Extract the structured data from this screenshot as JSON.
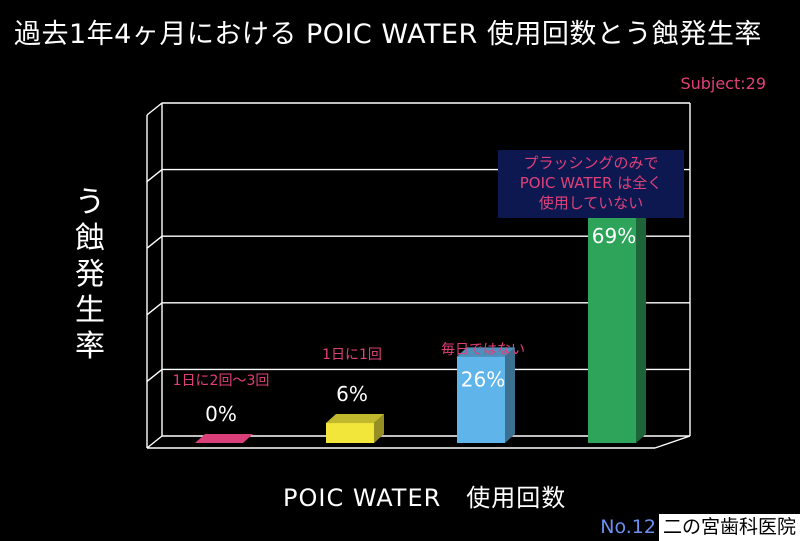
{
  "title": "過去1年4ヶ月における POIC WATER 使用回数とう蝕発生率",
  "subject": "Subject:29",
  "footer": {
    "slide_no": "No.12",
    "clinic": "二の宮歯科医院"
  },
  "colors": {
    "accent": "#e0407a"
  },
  "chart_data": {
    "type": "bar",
    "title": "過去1年4ヶ月における POIC WATER 使用回数とう蝕発生率",
    "xlabel": "POIC WATER　使用回数",
    "ylabel": "う蝕発生率",
    "ylim": [
      0,
      100
    ],
    "grid": true,
    "categories": [
      "1日に2回〜3回",
      "1日に1回",
      "毎日ではない",
      "プラッシングのみで POIC WATER は全く 使用していない"
    ],
    "values": [
      0,
      6,
      26,
      69
    ],
    "value_labels": [
      "0%",
      "6%",
      "26%",
      "69%"
    ],
    "annotations": [
      [
        "1日に2回〜3回"
      ],
      [
        "1日に1回"
      ],
      [
        "毎日ではない"
      ],
      [
        "プラッシングのみで",
        "POIC WATER は全く",
        "使用していない"
      ]
    ],
    "bar_colors": [
      "#d9407a",
      "#f2e63a",
      "#5fb4ea",
      "#2ea35a"
    ]
  }
}
